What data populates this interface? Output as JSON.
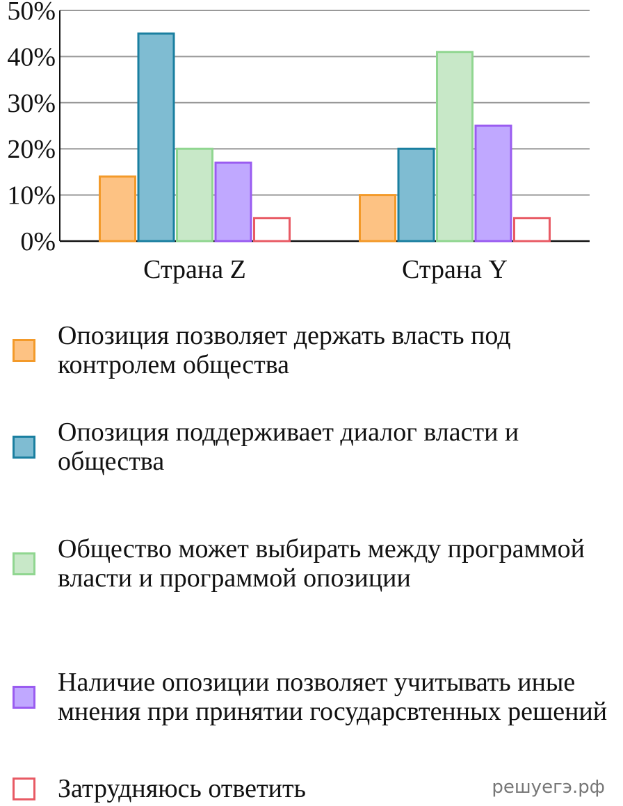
{
  "chart_data": {
    "type": "bar",
    "categories": [
      "Страна Z",
      "Страна Y"
    ],
    "series": [
      {
        "name": "Опозиция позволяет держать власть под контролем общества",
        "color": "#fdc283",
        "edgecolor": "#f39a2a",
        "values": [
          14,
          10
        ]
      },
      {
        "name": "Опозиция поддерживает диалог власти и общества",
        "color": "#7fbcd2",
        "edgecolor": "#1a7fa0",
        "values": [
          45,
          20
        ]
      },
      {
        "name": "Общество может выбирать между программой власти и программой опозиции",
        "color": "#c8e8c8",
        "edgecolor": "#90d690",
        "values": [
          20,
          41
        ]
      },
      {
        "name": "Наличие опозиции позволяет учитывать иные мнения при принятии государсвтенных решений",
        "color": "#c0a8ff",
        "edgecolor": "#9a5cf0",
        "values": [
          17,
          25
        ]
      },
      {
        "name": "Затрудняюсь ответить",
        "color": "#ffffff",
        "edgecolor": "#e85a64",
        "values": [
          5,
          5
        ]
      }
    ],
    "ylim": [
      0,
      50
    ],
    "yticks": [
      {
        "value": 0,
        "label": "0%"
      },
      {
        "value": 10,
        "label": "10%"
      },
      {
        "value": 20,
        "label": "20%"
      },
      {
        "value": 30,
        "label": "30%"
      },
      {
        "value": 40,
        "label": "40%"
      },
      {
        "value": 50,
        "label": "50%"
      }
    ],
    "grid": true,
    "watermark": "решуегэ.рф"
  }
}
